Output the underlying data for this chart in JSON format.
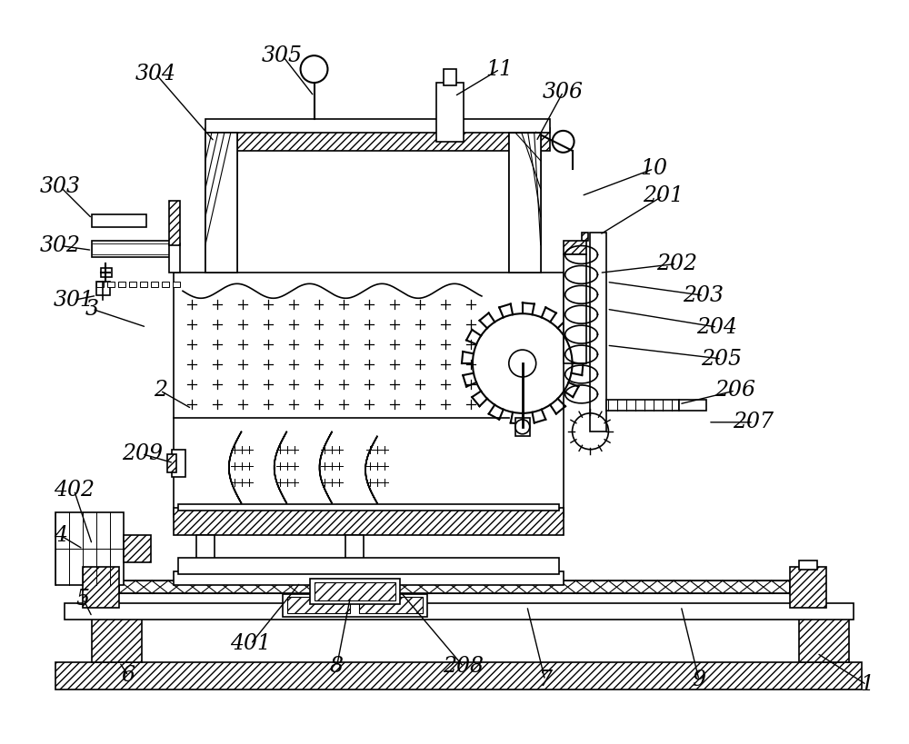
{
  "title": "",
  "bg_color": "#ffffff",
  "line_color": "#000000",
  "label_color": "#000000",
  "fig_width": 10.0,
  "fig_height": 8.19,
  "labels_info": [
    [
      "1",
      955,
      755,
      900,
      720
    ],
    [
      "2",
      175,
      430,
      210,
      450
    ],
    [
      "3",
      100,
      340,
      160,
      360
    ],
    [
      "4",
      65,
      590,
      90,
      605
    ],
    [
      "5",
      90,
      660,
      100,
      680
    ],
    [
      "6",
      140,
      745,
      130,
      730
    ],
    [
      "7",
      600,
      750,
      580,
      668
    ],
    [
      "8",
      370,
      735,
      385,
      658
    ],
    [
      "9",
      770,
      750,
      750,
      668
    ],
    [
      "10",
      720,
      185,
      640,
      215
    ],
    [
      "11",
      550,
      75,
      500,
      105
    ],
    [
      "201",
      730,
      215,
      660,
      258
    ],
    [
      "202",
      745,
      290,
      660,
      300
    ],
    [
      "203",
      775,
      325,
      668,
      310
    ],
    [
      "204",
      790,
      360,
      668,
      340
    ],
    [
      "205",
      795,
      395,
      668,
      380
    ],
    [
      "206",
      810,
      430,
      748,
      445
    ],
    [
      "207",
      830,
      465,
      780,
      465
    ],
    [
      "208",
      510,
      735,
      440,
      652
    ],
    [
      "209",
      155,
      500,
      190,
      510
    ],
    [
      "301",
      80,
      330,
      105,
      325
    ],
    [
      "302",
      65,
      270,
      100,
      275
    ],
    [
      "303",
      65,
      205,
      100,
      240
    ],
    [
      "304",
      170,
      80,
      235,
      155
    ],
    [
      "305",
      310,
      60,
      345,
      105
    ],
    [
      "306",
      620,
      100,
      590,
      155
    ],
    [
      "401",
      275,
      710,
      330,
      642
    ],
    [
      "402",
      80,
      540,
      100,
      600
    ]
  ]
}
